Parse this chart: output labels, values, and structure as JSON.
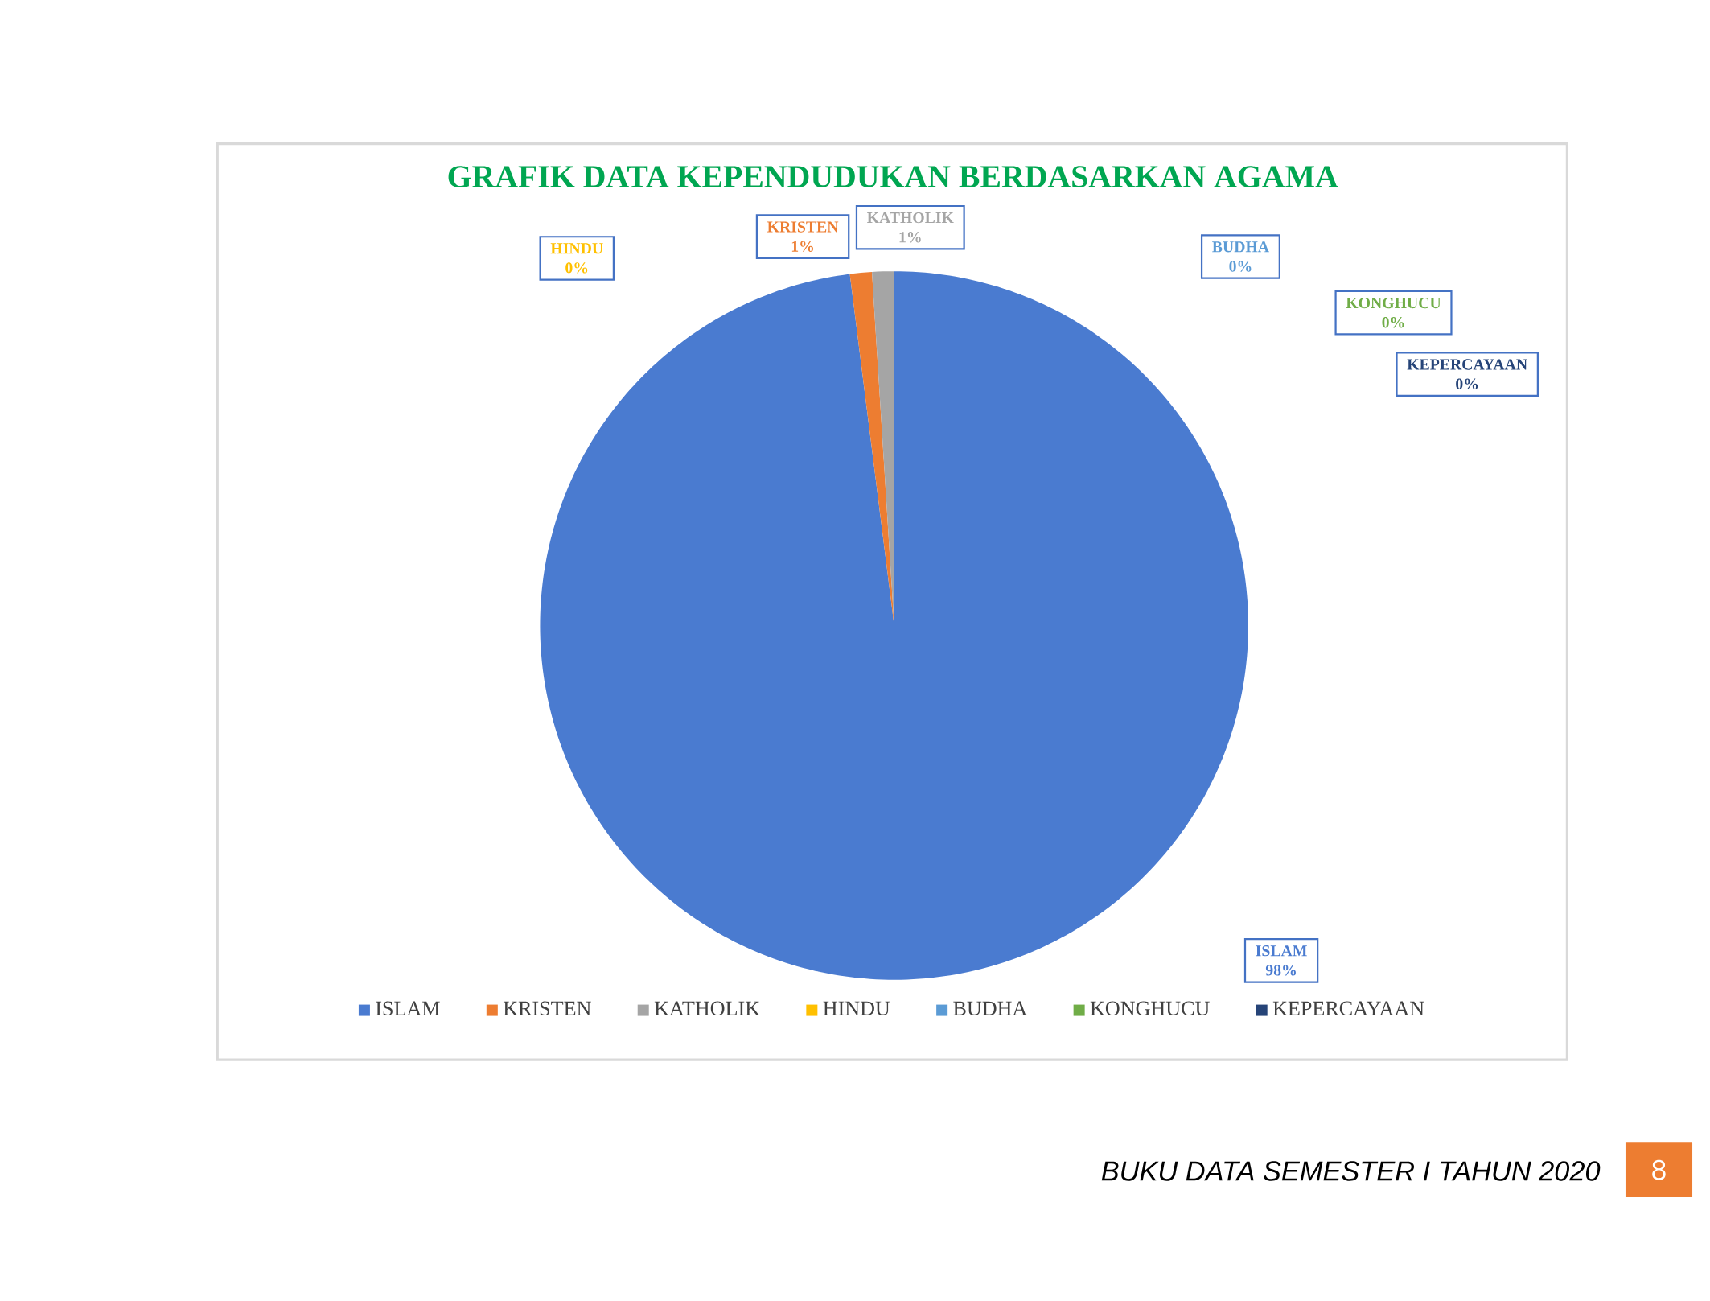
{
  "chart_data": {
    "type": "pie",
    "title": "GRAFIK DATA KEPENDUDUKAN BERDASARKAN AGAMA",
    "categories": [
      "ISLAM",
      "KRISTEN",
      "KATHOLIK",
      "HINDU",
      "BUDHA",
      "KONGHUCU",
      "KEPERCAYAAN"
    ],
    "values": [
      98,
      1,
      1,
      0,
      0,
      0,
      0
    ],
    "colors": [
      "#4a7bd0",
      "#ed7d31",
      "#a5a5a5",
      "#ffc000",
      "#5b9bd5",
      "#70ad47",
      "#264478"
    ],
    "value_labels": [
      "98%",
      "1%",
      "1%",
      "0%",
      "0%",
      "0%",
      "0%"
    ],
    "legend": "bottom",
    "annotations": [
      "BUKU DATA SEMESTER I TAHUN 2020",
      "8"
    ]
  }
}
